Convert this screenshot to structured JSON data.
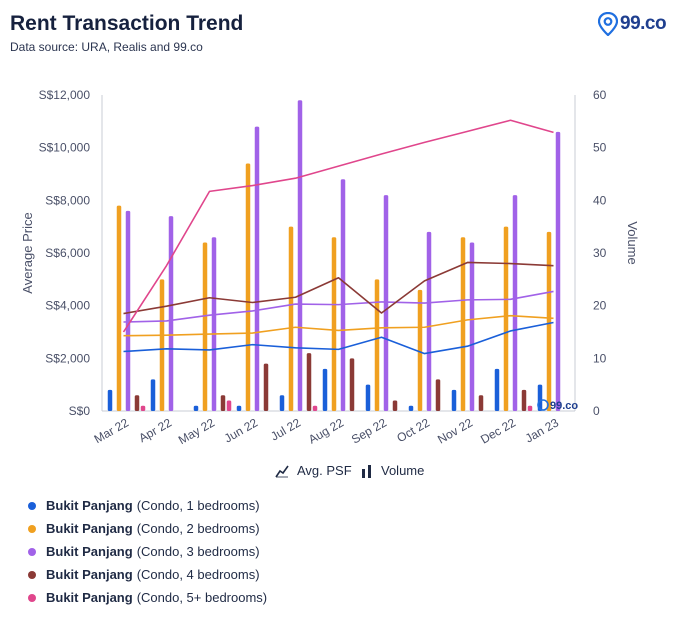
{
  "header": {
    "title": "Rent Transaction Trend",
    "subtitle": "Data source: URA, Realis and 99.co",
    "logo_text": "99.co"
  },
  "controls": {
    "avg_psf_label": "Avg. PSF",
    "volume_label": "Volume"
  },
  "legend": [
    {
      "name": "Bukit Panjang",
      "detail": "(Condo, 1 bedrooms)",
      "color": "#1a5fd9"
    },
    {
      "name": "Bukit Panjang",
      "detail": "(Condo, 2 bedrooms)",
      "color": "#f0a020"
    },
    {
      "name": "Bukit Panjang",
      "detail": "(Condo, 3 bedrooms)",
      "color": "#a162e8"
    },
    {
      "name": "Bukit Panjang",
      "detail": "(Condo, 4 bedrooms)",
      "color": "#8b3a36"
    },
    {
      "name": "Bukit Panjang",
      "detail": "(Condo, 5+ bedrooms)",
      "color": "#e0468c"
    }
  ],
  "chart_data": {
    "type": "bar+line",
    "title": "Rent Transaction Trend",
    "ylabel_left": "Average Price",
    "ylabel_right": "Volume",
    "categories": [
      "Mar 22",
      "Apr 22",
      "May 22",
      "Jun 22",
      "Jul 22",
      "Aug 22",
      "Sep 22",
      "Oct 22",
      "Nov 22",
      "Dec 22",
      "Jan 23"
    ],
    "y_left": {
      "min": 0,
      "max": 12000,
      "ticks": [
        0,
        2000,
        4000,
        6000,
        8000,
        10000,
        12000
      ],
      "tick_labels": [
        "S$0",
        "S$2,000",
        "S$4,000",
        "S$6,000",
        "S$8,000",
        "S$10,000",
        "S$12,000"
      ]
    },
    "y_right": {
      "min": 0,
      "max": 60,
      "ticks": [
        0,
        10,
        20,
        30,
        40,
        50,
        60
      ],
      "tick_labels": [
        "0",
        "10",
        "20",
        "30",
        "40",
        "50",
        "60"
      ]
    },
    "bar_series": [
      {
        "name": "Condo, 1 bedrooms",
        "color": "#1a5fd9",
        "values": [
          800,
          1200,
          200,
          200,
          600,
          1600,
          1000,
          200,
          800,
          1600,
          1000
        ]
      },
      {
        "name": "Condo, 2 bedrooms",
        "color": "#f0a020",
        "values": [
          7800,
          5000,
          6400,
          9400,
          7000,
          6600,
          5000,
          4600,
          6600,
          7000,
          6800
        ]
      },
      {
        "name": "Condo, 3 bedrooms",
        "color": "#a162e8",
        "values": [
          7600,
          7400,
          6600,
          10800,
          11800,
          8800,
          8200,
          6800,
          6400,
          8200,
          10600
        ]
      },
      {
        "name": "Condo, 4 bedrooms",
        "color": "#8b3a36",
        "values": [
          600,
          0,
          600,
          1800,
          2200,
          2000,
          400,
          1200,
          600,
          800,
          0
        ]
      },
      {
        "name": "Condo, 5+ bedrooms",
        "color": "#e0468c",
        "values": [
          200,
          0,
          400,
          0,
          200,
          0,
          0,
          0,
          0,
          200,
          0
        ]
      }
    ],
    "line_series": [
      {
        "name": "Condo, 1 bedrooms",
        "color": "#1a5fd9",
        "values": [
          11.3,
          11.8,
          11.6,
          12.6,
          12,
          11.7,
          14,
          10.9,
          12.3,
          15.2,
          16.8
        ]
      },
      {
        "name": "Condo, 2 bedrooms",
        "color": "#f0a020",
        "values": [
          14.3,
          14.4,
          14.6,
          14.8,
          15.9,
          15.3,
          15.8,
          15.9,
          17.3,
          18.1,
          17.6
        ]
      },
      {
        "name": "Condo, 3 bedrooms",
        "color": "#a162e8",
        "values": [
          16.9,
          17.1,
          18.2,
          19,
          20.3,
          20.2,
          20.7,
          20.5,
          21.1,
          21.2,
          22.7
        ]
      },
      {
        "name": "Condo, 4 bedrooms",
        "color": "#8b3a36",
        "values": [
          18.5,
          19.9,
          21.5,
          20.6,
          21.6,
          25.3,
          18.6,
          24.7,
          28.2,
          28,
          27.6
        ]
      },
      {
        "name": "Condo, 5+ bedrooms",
        "color": "#e0468c",
        "values": [
          15,
          27.6,
          41.7,
          42.8,
          44.2,
          46.5,
          48.8,
          51,
          53.1,
          55.2,
          52.9
        ]
      }
    ]
  }
}
